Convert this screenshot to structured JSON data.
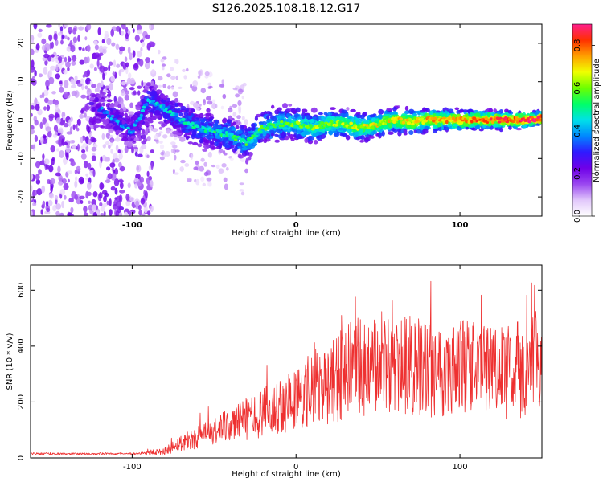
{
  "title": "S126.2025.108.18.12.G17",
  "chart_data": [
    {
      "type": "heatmap",
      "xlabel": "Height of straight line (km)",
      "ylabel": "Frequency (Hz)",
      "xlim": [
        -162,
        150
      ],
      "ylim": [
        -25,
        25
      ],
      "xticks": [
        "-100",
        "0",
        "100"
      ],
      "xtick_values": [
        -100,
        0,
        100
      ],
      "yticks": [
        "20",
        "10",
        "0",
        "-10",
        "-20"
      ],
      "ytick_values": [
        20,
        10,
        0,
        -10,
        -20
      ],
      "grid": false,
      "ridge": {
        "x": [
          -120,
          -110,
          -100,
          -90,
          -80,
          -70,
          -60,
          -50,
          -40,
          -30,
          -20,
          -10,
          0,
          10,
          20,
          30,
          40,
          50,
          60,
          70,
          80,
          90,
          100,
          110,
          120,
          130,
          140,
          150
        ],
        "y": [
          3,
          0,
          -3,
          5,
          3,
          0,
          -2,
          -3,
          -4,
          -6,
          -2,
          -1,
          -1,
          -2,
          -1,
          -1,
          -2,
          -1,
          0,
          -0.5,
          0,
          0,
          0,
          0,
          0,
          0,
          0,
          0.5
        ]
      },
      "colorbar": {
        "label": "Normalized spectral amplitude",
        "range": [
          0,
          0.9
        ],
        "ticks": [
          "0.0",
          "0.2",
          "0.4",
          "0.6",
          "0.8"
        ],
        "tick_values": [
          0,
          0.2,
          0.4,
          0.6,
          0.8
        ]
      }
    },
    {
      "type": "line",
      "xlabel": "Height of straight line (km)",
      "ylabel": "SNR (10 * v/v)",
      "xlim": [
        -162,
        150
      ],
      "ylim": [
        0,
        690
      ],
      "xticks": [
        "-100",
        "0",
        "100"
      ],
      "xtick_values": [
        -100,
        0,
        100
      ],
      "yticks": [
        "0",
        "200",
        "400",
        "600"
      ],
      "ytick_values": [
        0,
        200,
        400,
        600
      ],
      "grid": false,
      "series": [
        {
          "color": "#ee3030",
          "x": [
            -162,
            -140,
            -120,
            -100,
            -90,
            -85,
            -80,
            -70,
            -60,
            -50,
            -40,
            -30,
            -20,
            -10,
            0,
            10,
            20,
            30,
            40,
            50,
            60,
            70,
            80,
            90,
            100,
            110,
            120,
            130,
            140,
            150
          ],
          "y": [
            15,
            15,
            15,
            15,
            18,
            20,
            25,
            55,
            75,
            90,
            120,
            140,
            160,
            190,
            210,
            240,
            260,
            310,
            330,
            320,
            320,
            330,
            320,
            320,
            330,
            320,
            300,
            310,
            320,
            330
          ]
        }
      ]
    }
  ],
  "colors": {
    "line": "#ee3030",
    "colormap": [
      "#ffffff",
      "#e1c7fb",
      "#9a47f0",
      "#6f00e8",
      "#2f1aff",
      "#0088ff",
      "#00e1e8",
      "#00ff68",
      "#6cff00",
      "#f0ff00",
      "#ffa000",
      "#ff3000",
      "#ff1e8c"
    ]
  }
}
